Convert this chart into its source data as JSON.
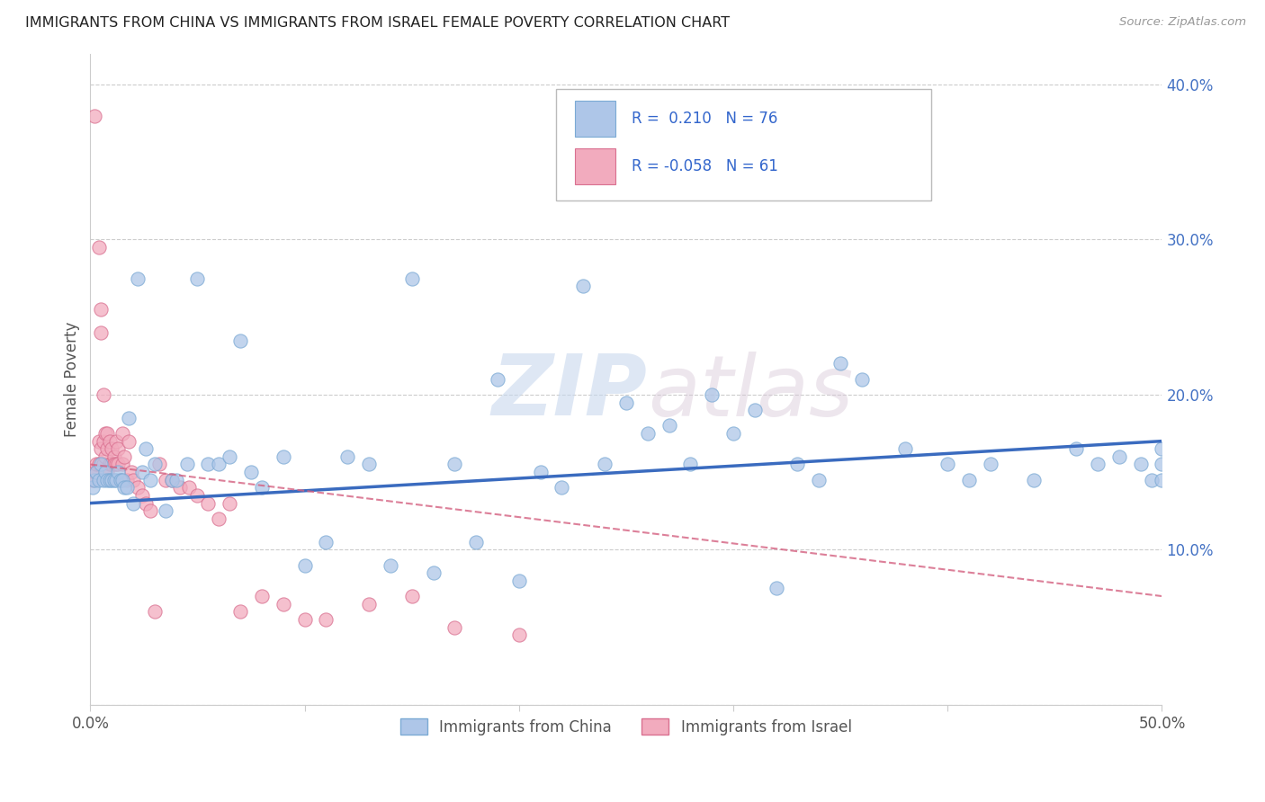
{
  "title": "IMMIGRANTS FROM CHINA VS IMMIGRANTS FROM ISRAEL FEMALE POVERTY CORRELATION CHART",
  "source": "Source: ZipAtlas.com",
  "ylabel": "Female Poverty",
  "yticks": [
    0.0,
    0.1,
    0.2,
    0.3,
    0.4
  ],
  "ytick_labels": [
    "",
    "10.0%",
    "20.0%",
    "30.0%",
    "40.0%"
  ],
  "xlim": [
    0.0,
    0.5
  ],
  "ylim": [
    0.0,
    0.42
  ],
  "china_color": "#aec6e8",
  "china_edge": "#7baad4",
  "israel_color": "#f2abbe",
  "israel_edge": "#d97090",
  "china_R": 0.21,
  "china_N": 76,
  "israel_R": -0.058,
  "israel_N": 61,
  "china_scatter_x": [
    0.001,
    0.002,
    0.003,
    0.004,
    0.005,
    0.006,
    0.007,
    0.008,
    0.009,
    0.01,
    0.011,
    0.012,
    0.013,
    0.014,
    0.015,
    0.016,
    0.017,
    0.018,
    0.02,
    0.022,
    0.024,
    0.026,
    0.028,
    0.03,
    0.035,
    0.038,
    0.04,
    0.045,
    0.05,
    0.055,
    0.06,
    0.065,
    0.07,
    0.075,
    0.08,
    0.09,
    0.1,
    0.11,
    0.12,
    0.13,
    0.14,
    0.15,
    0.16,
    0.17,
    0.18,
    0.19,
    0.2,
    0.21,
    0.22,
    0.23,
    0.24,
    0.25,
    0.26,
    0.27,
    0.28,
    0.29,
    0.3,
    0.31,
    0.32,
    0.33,
    0.34,
    0.35,
    0.36,
    0.38,
    0.4,
    0.41,
    0.42,
    0.44,
    0.46,
    0.47,
    0.48,
    0.49,
    0.495,
    0.5,
    0.5,
    0.5
  ],
  "china_scatter_y": [
    0.14,
    0.145,
    0.15,
    0.145,
    0.155,
    0.145,
    0.15,
    0.145,
    0.145,
    0.145,
    0.145,
    0.145,
    0.15,
    0.145,
    0.145,
    0.14,
    0.14,
    0.185,
    0.13,
    0.275,
    0.15,
    0.165,
    0.145,
    0.155,
    0.125,
    0.145,
    0.145,
    0.155,
    0.275,
    0.155,
    0.155,
    0.16,
    0.235,
    0.15,
    0.14,
    0.16,
    0.09,
    0.105,
    0.16,
    0.155,
    0.09,
    0.275,
    0.085,
    0.155,
    0.105,
    0.21,
    0.08,
    0.15,
    0.14,
    0.27,
    0.155,
    0.195,
    0.175,
    0.18,
    0.155,
    0.2,
    0.175,
    0.19,
    0.075,
    0.155,
    0.145,
    0.22,
    0.21,
    0.165,
    0.155,
    0.145,
    0.155,
    0.145,
    0.165,
    0.155,
    0.16,
    0.155,
    0.145,
    0.165,
    0.155,
    0.145
  ],
  "israel_scatter_x": [
    0.001,
    0.002,
    0.002,
    0.003,
    0.003,
    0.004,
    0.004,
    0.004,
    0.005,
    0.005,
    0.005,
    0.006,
    0.006,
    0.006,
    0.007,
    0.007,
    0.007,
    0.008,
    0.008,
    0.008,
    0.009,
    0.009,
    0.01,
    0.01,
    0.011,
    0.011,
    0.012,
    0.012,
    0.013,
    0.013,
    0.014,
    0.015,
    0.015,
    0.016,
    0.017,
    0.018,
    0.019,
    0.02,
    0.022,
    0.024,
    0.026,
    0.028,
    0.03,
    0.032,
    0.035,
    0.038,
    0.042,
    0.046,
    0.05,
    0.055,
    0.06,
    0.065,
    0.07,
    0.08,
    0.09,
    0.1,
    0.11,
    0.13,
    0.15,
    0.17,
    0.2
  ],
  "israel_scatter_y": [
    0.145,
    0.38,
    0.15,
    0.15,
    0.155,
    0.295,
    0.155,
    0.17,
    0.24,
    0.255,
    0.165,
    0.2,
    0.155,
    0.17,
    0.175,
    0.16,
    0.15,
    0.165,
    0.175,
    0.15,
    0.155,
    0.17,
    0.155,
    0.165,
    0.16,
    0.155,
    0.17,
    0.155,
    0.155,
    0.165,
    0.145,
    0.175,
    0.155,
    0.16,
    0.145,
    0.17,
    0.15,
    0.145,
    0.14,
    0.135,
    0.13,
    0.125,
    0.06,
    0.155,
    0.145,
    0.145,
    0.14,
    0.14,
    0.135,
    0.13,
    0.12,
    0.13,
    0.06,
    0.07,
    0.065,
    0.055,
    0.055,
    0.065,
    0.07,
    0.05,
    0.045
  ],
  "watermark_zip": "ZIP",
  "watermark_atlas": "atlas",
  "china_line_x": [
    0.0,
    0.5
  ],
  "china_line_y": [
    0.13,
    0.17
  ],
  "israel_line_x": [
    0.0,
    0.5
  ],
  "israel_line_y": [
    0.155,
    0.07
  ],
  "legend_text_china": "R =  0.210   N = 76",
  "legend_text_israel": "R = -0.058   N = 61",
  "bottom_label_china": "Immigrants from China",
  "bottom_label_israel": "Immigrants from Israel",
  "grid_color": "#cccccc",
  "trend_china_color": "#3a6bbf",
  "trend_israel_color": "#d46080"
}
